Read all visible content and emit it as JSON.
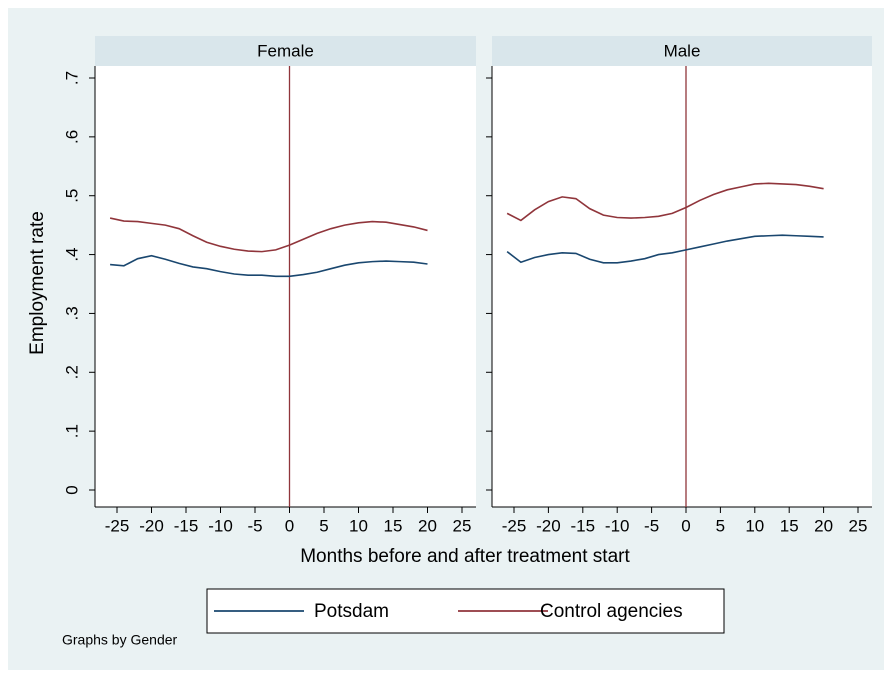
{
  "ylabel": "Employment rate",
  "xlabel": "Months before and after treatment start",
  "note": "Graphs by Gender",
  "chart_data": [
    {
      "type": "line",
      "title": "Female",
      "x": [
        -26,
        -24,
        -22,
        -20,
        -18,
        -16,
        -14,
        -12,
        -10,
        -8,
        -6,
        -4,
        -2,
        0,
        2,
        4,
        6,
        8,
        10,
        12,
        14,
        16,
        18,
        20
      ],
      "series": [
        {
          "name": "Potsdam",
          "color": "#1a476f",
          "values": [
            0.383,
            0.381,
            0.393,
            0.398,
            0.392,
            0.385,
            0.379,
            0.376,
            0.371,
            0.367,
            0.365,
            0.365,
            0.363,
            0.363,
            0.366,
            0.37,
            0.376,
            0.382,
            0.386,
            0.388,
            0.389,
            0.388,
            0.387,
            0.384
          ]
        },
        {
          "name": "Control agencies",
          "color": "#90353b",
          "values": [
            0.462,
            0.457,
            0.456,
            0.453,
            0.45,
            0.444,
            0.432,
            0.421,
            0.414,
            0.409,
            0.406,
            0.405,
            0.408,
            0.416,
            0.426,
            0.436,
            0.444,
            0.45,
            0.454,
            0.456,
            0.455,
            0.451,
            0.447,
            0.441
          ]
        }
      ],
      "xlim": [
        -25,
        25
      ],
      "xticks": [
        -25,
        -20,
        -15,
        -10,
        -5,
        0,
        5,
        10,
        15,
        20,
        25
      ],
      "ylim": [
        0,
        0.7
      ],
      "yticks": [
        {
          "value": 0,
          "label": "0"
        },
        {
          "value": 0.1,
          "label": ".1"
        },
        {
          "value": 0.2,
          "label": ".2"
        },
        {
          "value": 0.3,
          "label": ".3"
        },
        {
          "value": 0.4,
          "label": ".4"
        },
        {
          "value": 0.5,
          "label": ".5"
        },
        {
          "value": 0.6,
          "label": ".6"
        },
        {
          "value": 0.7,
          "label": ".7"
        }
      ],
      "vline": 0,
      "vline_color": "#90353b"
    },
    {
      "type": "line",
      "title": "Male",
      "x": [
        -26,
        -24,
        -22,
        -20,
        -18,
        -16,
        -14,
        -12,
        -10,
        -8,
        -6,
        -4,
        -2,
        0,
        2,
        4,
        6,
        8,
        10,
        12,
        14,
        16,
        18,
        20
      ],
      "series": [
        {
          "name": "Potsdam",
          "color": "#1a476f",
          "values": [
            0.405,
            0.387,
            0.395,
            0.4,
            0.403,
            0.402,
            0.392,
            0.386,
            0.386,
            0.389,
            0.393,
            0.4,
            0.403,
            0.408,
            0.413,
            0.418,
            0.423,
            0.427,
            0.431,
            0.432,
            0.433,
            0.432,
            0.431,
            0.43
          ]
        },
        {
          "name": "Control agencies",
          "color": "#90353b",
          "values": [
            0.47,
            0.458,
            0.476,
            0.49,
            0.498,
            0.495,
            0.478,
            0.467,
            0.463,
            0.462,
            0.463,
            0.465,
            0.47,
            0.48,
            0.492,
            0.502,
            0.51,
            0.515,
            0.52,
            0.521,
            0.52,
            0.519,
            0.516,
            0.512
          ]
        }
      ],
      "xlim": [
        -25,
        25
      ],
      "xticks": [
        -25,
        -20,
        -15,
        -10,
        -5,
        0,
        5,
        10,
        15,
        20,
        25
      ],
      "ylim": [
        0,
        0.7
      ],
      "yticks": [
        0,
        0.1,
        0.2,
        0.3,
        0.4,
        0.5,
        0.6,
        0.7
      ],
      "vline": 0,
      "vline_color": "#90353b"
    }
  ]
}
